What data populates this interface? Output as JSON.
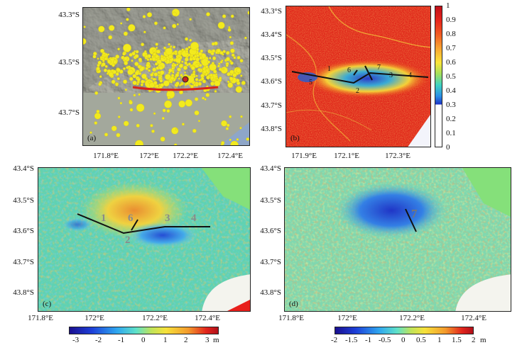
{
  "panels": {
    "a": {
      "label": "(a)",
      "y_ticks": [
        "43.3°S",
        "43.5°S",
        "43.7°S"
      ],
      "x_ticks": [
        "171.8°E",
        "172°E",
        "172.2°E",
        "172.4°E"
      ],
      "colors": {
        "relief": "#8f8f86",
        "lowland": "#a3a89c",
        "sea": "#8ea6c8",
        "quake": "#f2ea1e",
        "fault": "#d8231b"
      }
    },
    "b": {
      "label": "(b)",
      "y_ticks": [
        "43.3°S",
        "43.4°S",
        "43.5°S",
        "43.6°S",
        "43.7°S",
        "43.8°S"
      ],
      "x_ticks": [
        "171.9°E",
        "172.1°E",
        "172.3°E"
      ],
      "fault_labels": [
        "1",
        "2",
        "3",
        "4",
        "5",
        "6",
        "7"
      ],
      "colorbar_ticks": [
        "1",
        "0.9",
        "0.8",
        "0.7",
        "0.6",
        "0.5",
        "0.4",
        "0.3",
        "0.2",
        "0.1",
        "0"
      ]
    },
    "c": {
      "label": "(c)",
      "y_ticks": [
        "43.4°S",
        "43.5°S",
        "43.6°S",
        "43.7°S",
        "43.8°S"
      ],
      "x_ticks": [
        "171.8°E",
        "172°E",
        "172.2°E",
        "172.4°E"
      ],
      "fault_labels": [
        "1",
        "6",
        "2",
        "3",
        "4"
      ],
      "colorbar_ticks": [
        "-3",
        "-2",
        "-1",
        "0",
        "1",
        "2",
        "3"
      ],
      "colorbar_unit": "m"
    },
    "d": {
      "label": "(d)",
      "y_ticks": [
        "43.4°S",
        "43.5°S",
        "43.6°S",
        "43.7°S",
        "43.8°S"
      ],
      "x_ticks": [
        "171.8°E",
        "172°E",
        "172.2°E",
        "172.4°E"
      ],
      "fault_labels": [
        "7"
      ],
      "colorbar_ticks": [
        "-2",
        "-1.5",
        "-1",
        "-0.5",
        "0",
        "0.5",
        "1",
        "1.5",
        "2"
      ],
      "colorbar_unit": "m"
    }
  }
}
